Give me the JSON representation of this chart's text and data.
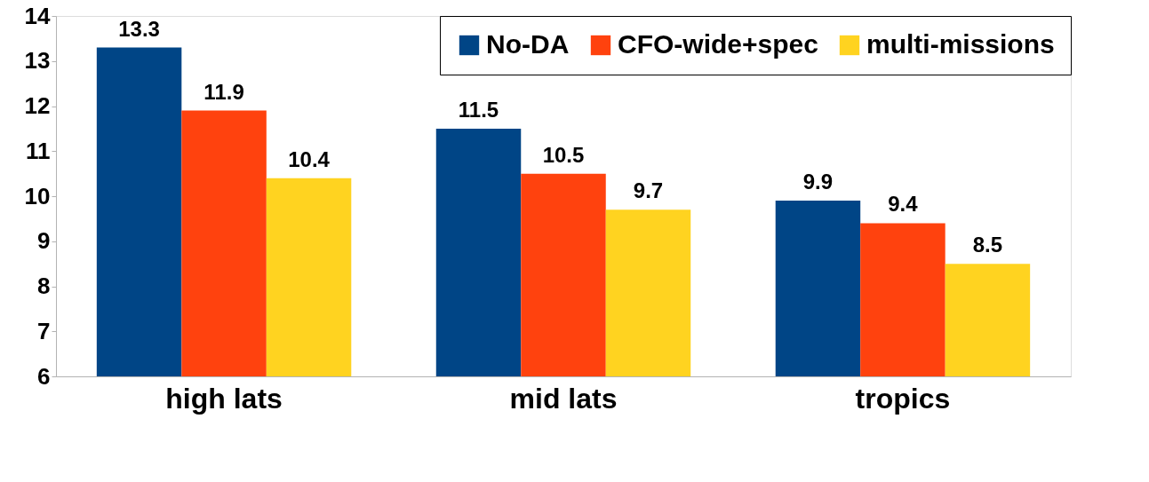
{
  "chart_data": {
    "type": "bar",
    "categories": [
      "high lats",
      "mid lats",
      "tropics"
    ],
    "series": [
      {
        "name": "No-DA",
        "color": "#004586",
        "values": [
          13.3,
          11.5,
          9.9
        ]
      },
      {
        "name": "CFO-wide+spec",
        "color": "#ff420e",
        "values": [
          11.9,
          10.5,
          9.4
        ]
      },
      {
        "name": "multi-missions",
        "color": "#ffd320",
        "values": [
          10.4,
          9.7,
          8.5
        ]
      }
    ],
    "ylim": [
      6,
      14
    ],
    "yticks": [
      6,
      7,
      8,
      9,
      10,
      11,
      12,
      13,
      14
    ],
    "grid": false,
    "legend": "top right",
    "data_labels": true
  }
}
